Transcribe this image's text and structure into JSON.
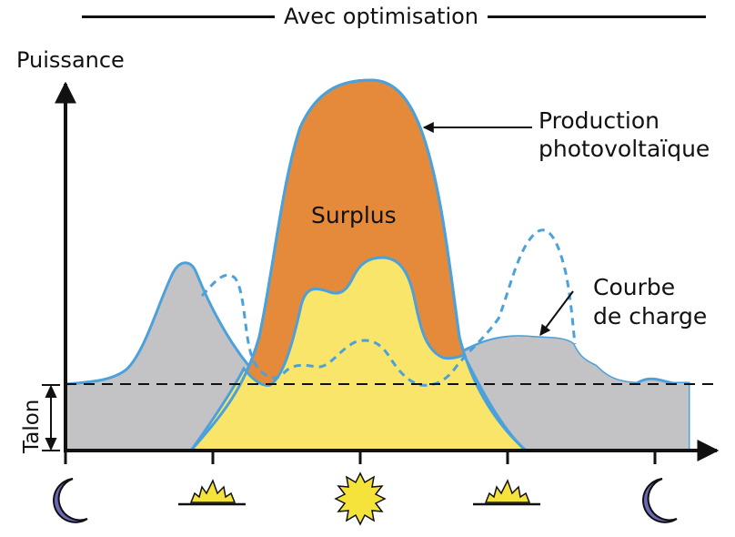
{
  "title": "Avec optimisation",
  "y_axis_label": "Puissance",
  "baseline_label": "Talon",
  "surplus_label": "Surplus",
  "production_label": [
    "Production",
    "photovoltaïque"
  ],
  "load_label": [
    "Courbe",
    "de charge"
  ],
  "colors": {
    "grey_fill": "#c3c3c5",
    "orange_fill": "#e48a3a",
    "yellow_fill": "#f9e56a",
    "curve_blue": "#4ba1dc",
    "moon": "#6a6ab8",
    "sun": "#f5e23a"
  },
  "time_icons": [
    "moon-icon",
    "sunrise-icon",
    "sun-icon",
    "sunset-icon",
    "moon-icon"
  ]
}
